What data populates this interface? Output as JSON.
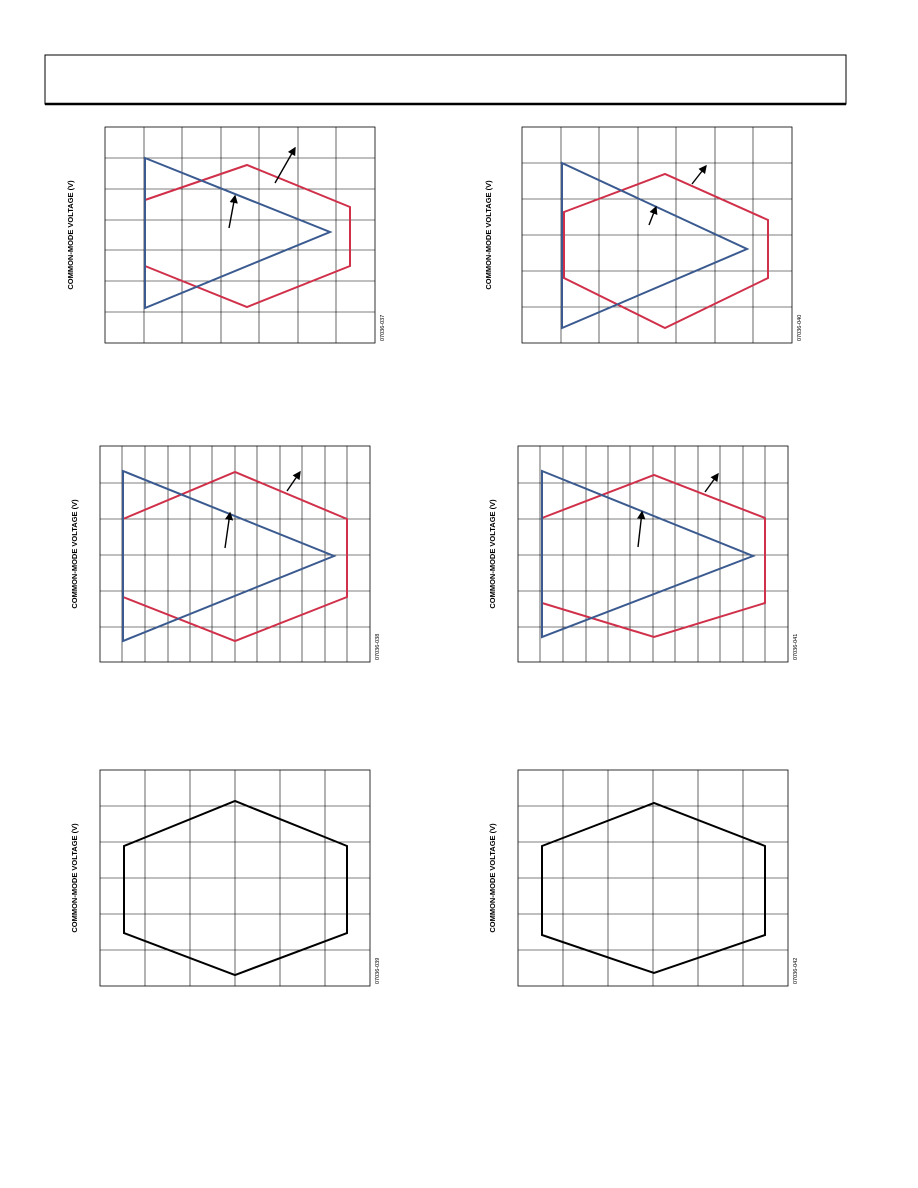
{
  "figures": [
    {
      "y_label": "COMMON-MODE VOLTAGE (V)",
      "code": "07036-037"
    },
    {
      "y_label": "COMMON-MODE VOLTAGE (V)",
      "code": "07036-040"
    },
    {
      "y_label": "COMMON-MODE VOLTAGE (V)",
      "code": "07036-038"
    },
    {
      "y_label": "COMMON-MODE VOLTAGE (V)",
      "code": "07036-041"
    },
    {
      "y_label": "COMMON-MODE VOLTAGE (V)",
      "code": "07036-039"
    },
    {
      "y_label": "COMMON-MODE VOLTAGE (V)",
      "code": "07036-042"
    }
  ]
}
